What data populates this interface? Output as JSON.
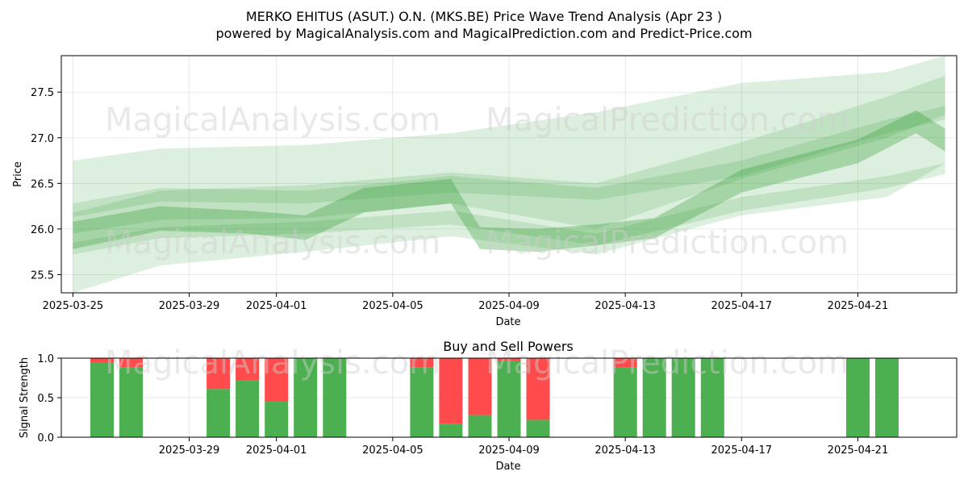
{
  "title": "MERKO EHITUS (ASUT.) O.N. (MKS.BE) Price Wave Trend Analysis (Apr 23 )",
  "subtitle": "powered by MagicalAnalysis.com and MagicalPrediction.com and Predict-Price.com",
  "watermarks": [
    "MagicalAnalysis.com",
    "MagicalPrediction.com"
  ],
  "colors": {
    "wave": "#2e9e33",
    "buy": "#4caf50",
    "sell": "#ff4b4b"
  },
  "chart_data": [
    {
      "type": "area",
      "title": "",
      "xlabel": "Date",
      "ylabel": "Price",
      "ylim": [
        25.3,
        27.9
      ],
      "x_ticks": [
        "2025-03-25",
        "2025-03-29",
        "2025-04-01",
        "2025-04-05",
        "2025-04-09",
        "2025-04-13",
        "2025-04-17",
        "2025-04-21"
      ],
      "y_ticks": [
        "25.5",
        "26.0",
        "26.5",
        "27.0",
        "27.5"
      ],
      "x_range": [
        "2025-03-25",
        "2025-04-24"
      ],
      "series": [
        {
          "name": "wave-outer",
          "x": [
            "2025-03-25",
            "2025-03-28",
            "2025-04-02",
            "2025-04-07",
            "2025-04-12",
            "2025-04-17",
            "2025-04-22",
            "2025-04-24"
          ],
          "upper": [
            26.75,
            26.88,
            26.92,
            27.05,
            27.28,
            27.6,
            27.72,
            27.9
          ],
          "lower": [
            25.3,
            25.6,
            25.75,
            25.92,
            25.72,
            26.15,
            26.35,
            26.72
          ]
        },
        {
          "name": "wave-upper-channel",
          "x": [
            "2025-03-25",
            "2025-03-28",
            "2025-04-02",
            "2025-04-07",
            "2025-04-12",
            "2025-04-17",
            "2025-04-22",
            "2025-04-24"
          ],
          "upper": [
            26.28,
            26.45,
            26.42,
            26.58,
            26.45,
            26.75,
            27.2,
            27.35
          ],
          "lower": [
            26.13,
            26.3,
            26.28,
            26.4,
            26.32,
            26.58,
            27.05,
            27.2
          ]
        },
        {
          "name": "wave-core",
          "x": [
            "2025-03-25",
            "2025-03-28",
            "2025-03-31",
            "2025-04-02",
            "2025-04-04",
            "2025-04-07",
            "2025-04-08",
            "2025-04-10",
            "2025-04-12",
            "2025-04-14",
            "2025-04-17",
            "2025-04-21",
            "2025-04-23",
            "2025-04-24"
          ],
          "upper": [
            26.08,
            26.25,
            26.2,
            26.15,
            26.45,
            26.55,
            26.02,
            26.0,
            26.05,
            26.12,
            26.65,
            26.98,
            27.3,
            27.1
          ],
          "lower": [
            25.78,
            25.98,
            25.95,
            25.88,
            26.18,
            26.28,
            25.78,
            25.75,
            25.82,
            25.9,
            26.4,
            26.72,
            27.05,
            26.85
          ]
        },
        {
          "name": "wave-lower-channel",
          "x": [
            "2025-03-25",
            "2025-03-28",
            "2025-04-02",
            "2025-04-07",
            "2025-04-12",
            "2025-04-17",
            "2025-04-22",
            "2025-04-24"
          ],
          "upper": [
            25.85,
            26.02,
            26.08,
            26.2,
            25.95,
            26.35,
            26.58,
            26.72
          ],
          "lower": [
            25.72,
            25.9,
            25.95,
            26.05,
            25.82,
            26.2,
            26.45,
            26.6
          ]
        },
        {
          "name": "wave-mid-channel",
          "x": [
            "2025-03-25",
            "2025-03-28",
            "2025-04-02",
            "2025-04-07",
            "2025-04-12",
            "2025-04-17",
            "2025-04-22",
            "2025-04-24"
          ],
          "upper": [
            26.18,
            26.42,
            26.48,
            26.62,
            26.5,
            26.95,
            27.45,
            27.68
          ],
          "lower": [
            25.95,
            26.1,
            26.12,
            26.28,
            26.0,
            26.55,
            27.0,
            27.25
          ]
        }
      ]
    },
    {
      "type": "bar",
      "title": "Buy and Sell Powers",
      "xlabel": "Date",
      "ylabel": "Signal Strength",
      "ylim": [
        0,
        1
      ],
      "x_ticks": [
        "2025-03-29",
        "2025-04-01",
        "2025-04-05",
        "2025-04-09",
        "2025-04-13",
        "2025-04-17",
        "2025-04-21"
      ],
      "y_ticks": [
        "0.0",
        "0.5",
        "1.0"
      ],
      "x_range": [
        "2025-03-24",
        "2025-04-24"
      ],
      "categories": [
        "2025-03-26",
        "2025-03-27",
        "2025-03-30",
        "2025-03-31",
        "2025-04-01",
        "2025-04-02",
        "2025-04-03",
        "2025-04-06",
        "2025-04-07",
        "2025-04-08",
        "2025-04-09",
        "2025-04-10",
        "2025-04-13",
        "2025-04-14",
        "2025-04-15",
        "2025-04-16",
        "2025-04-21",
        "2025-04-22"
      ],
      "series": [
        {
          "name": "Buy",
          "values": [
            0.94,
            0.88,
            0.61,
            0.72,
            0.45,
            1.0,
            1.0,
            0.88,
            0.17,
            0.28,
            0.96,
            0.22,
            0.88,
            1.0,
            1.0,
            1.0,
            1.0,
            1.0
          ]
        },
        {
          "name": "Sell",
          "values": [
            0.06,
            0.12,
            0.39,
            0.28,
            0.55,
            0.0,
            0.0,
            0.12,
            0.83,
            0.72,
            0.04,
            0.78,
            0.12,
            0.0,
            0.0,
            0.0,
            0.0,
            0.0
          ]
        }
      ]
    }
  ]
}
